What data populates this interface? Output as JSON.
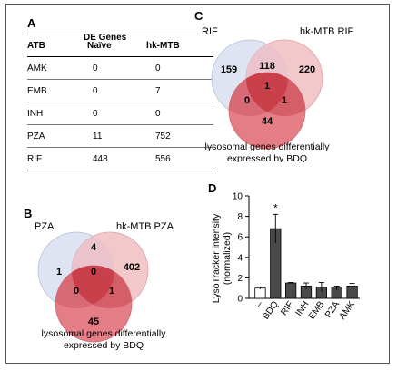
{
  "panels": {
    "a": {
      "letter": "A",
      "caption": "DE Genes",
      "columns": [
        "ATB",
        "Naïve",
        "hk-MTB"
      ],
      "rows": [
        {
          "atb": "AMK",
          "naive": "0",
          "hk": "0"
        },
        {
          "atb": "EMB",
          "naive": "0",
          "hk": "7"
        },
        {
          "atb": "INH",
          "naive": "0",
          "hk": "0"
        },
        {
          "atb": "PZA",
          "naive": "11",
          "hk": "752"
        },
        {
          "atb": "RIF",
          "naive": "448",
          "hk": "556"
        }
      ]
    },
    "b": {
      "letter": "B",
      "label_left": "PZA",
      "label_right": "hk-MTB PZA",
      "caption_line1": "lysosomal genes differentially",
      "caption_line2": "expressed by BDQ",
      "counts": {
        "left_only": "1",
        "left_right": "4",
        "right_only": "402",
        "center": "0",
        "left_bottom": "0",
        "right_bottom": "1",
        "bottom_only": "45"
      }
    },
    "c": {
      "letter": "C",
      "label_left": "RIF",
      "label_right": "hk-MTB RIF",
      "caption_line1": "lysosomal genes differentially",
      "caption_line2": "expressed by BDQ",
      "counts": {
        "left_only": "159",
        "left_right": "118",
        "right_only": "220",
        "center": "1",
        "left_bottom": "0",
        "right_bottom": "1",
        "bottom_only": "44"
      }
    },
    "d": {
      "letter": "D",
      "significance": "*"
    }
  },
  "colors": {
    "venn_left": "#dfe4f2",
    "venn_right": "#f3c8cb",
    "venn_bottom": "#e47d85",
    "venn_overlap_dark": "#c9404a",
    "bar_dark": "#4a4a4a"
  },
  "chart_data": {
    "type": "bar",
    "categories": [
      "–",
      "BDQ",
      "RIF",
      "INH",
      "EMB",
      "PZA",
      "AMK"
    ],
    "values": [
      1.0,
      6.8,
      1.5,
      1.2,
      1.1,
      1.0,
      1.2
    ],
    "errors": [
      0.1,
      1.4,
      0.05,
      0.3,
      0.45,
      0.2,
      0.25
    ],
    "bar_fill": [
      "#ffffff",
      "#4a4a4a",
      "#4a4a4a",
      "#4a4a4a",
      "#4a4a4a",
      "#4a4a4a",
      "#4a4a4a"
    ],
    "ylabel": "LysoTracker intensity (normalized)",
    "ylabel_line1": "LysoTracker intensity",
    "ylabel_line2": "(normalized)",
    "ylim": [
      0,
      10
    ],
    "yticks": [
      "0",
      "2",
      "4",
      "6",
      "8",
      "10"
    ],
    "grid": false
  }
}
